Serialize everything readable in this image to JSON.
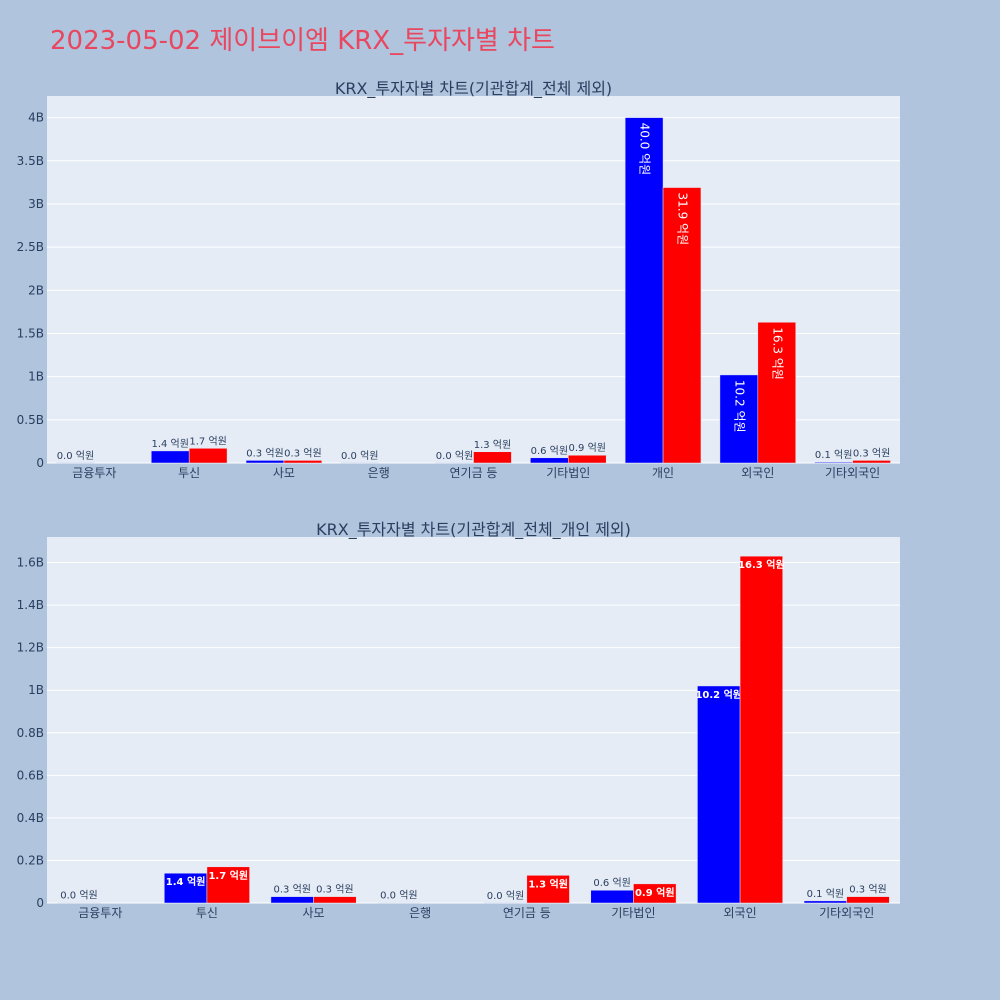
{
  "page_title": "2023-05-02 제이브이엠 KRX_투자자별 차트",
  "colors": {
    "background": "#b0c4de",
    "plot_bg": "#e5ecf6",
    "title": "#e8475f",
    "text": "#2a3f5f",
    "buy": "#0000ff",
    "sell": "#ff0000"
  },
  "chart_data": [
    {
      "type": "bar",
      "title": "KRX_투자자별 차트(기관합계_전체 제외)",
      "categories": [
        "금융투자",
        "투신",
        "사모",
        "은행",
        "연기금 등",
        "기타법인",
        "개인",
        "외국인",
        "기타외국인"
      ],
      "series": [
        {
          "color": "#0000ff",
          "values": [
            0.002,
            0.14,
            0.03,
            0.002,
            0.001,
            0.06,
            4.0,
            1.02,
            0.01
          ],
          "labels": [
            "0.0 억원",
            "1.4 억원",
            "0.3 억원",
            "0.0 억원",
            "0.0 억원",
            "0.6 억원",
            "40.0 억원",
            "10.2 억원",
            "0.1 억원"
          ]
        },
        {
          "color": "#ff0000",
          "values": [
            0,
            0.17,
            0.03,
            0,
            0.13,
            0.09,
            3.19,
            1.63,
            0.03
          ],
          "labels": [
            "",
            "1.7 억원",
            "0.3 억원",
            "",
            "1.3 억원",
            "0.9 억원",
            "31.9 억원",
            "16.3 억원",
            "0.3 억원"
          ]
        }
      ],
      "ylim": [
        0,
        4.25
      ],
      "yticks": [
        0,
        0.5,
        1,
        1.5,
        2,
        2.5,
        3,
        3.5,
        4
      ],
      "ytick_labels": [
        "0",
        "0.5B",
        "1B",
        "1.5B",
        "2B",
        "2.5B",
        "3B",
        "3.5B",
        "4B"
      ],
      "inside_threshold": 0.8,
      "grid": true
    },
    {
      "type": "bar",
      "title": "KRX_투자자별 차트(기관합계_전체_개인 제외)",
      "categories": [
        "금융투자",
        "투신",
        "사모",
        "은행",
        "연기금 등",
        "기타법인",
        "외국인",
        "기타외국인"
      ],
      "series": [
        {
          "color": "#0000ff",
          "values": [
            0.002,
            0.14,
            0.03,
            0.002,
            0.001,
            0.06,
            1.02,
            0.01
          ],
          "labels": [
            "0.0 억원",
            "1.4 억원",
            "0.3 억원",
            "0.0 억원",
            "0.0 억원",
            "0.6 억원",
            "10.2 억원",
            "0.1 억원"
          ]
        },
        {
          "color": "#ff0000",
          "values": [
            0,
            0.17,
            0.03,
            0,
            0.13,
            0.09,
            1.63,
            0.03
          ],
          "labels": [
            "",
            "1.7 억원",
            "0.3 억원",
            "",
            "1.3 억원",
            "0.9 억원",
            "16.3 억원",
            "0.3 억원"
          ]
        }
      ],
      "ylim": [
        0,
        1.72
      ],
      "yticks": [
        0,
        0.2,
        0.4,
        0.6,
        0.8,
        1.0,
        1.2,
        1.4,
        1.6
      ],
      "ytick_labels": [
        "0",
        "0.2B",
        "0.4B",
        "0.6B",
        "0.8B",
        "1B",
        "1.2B",
        "1.4B",
        "1.6B"
      ],
      "inside_threshold": 0.08,
      "grid": true
    }
  ]
}
